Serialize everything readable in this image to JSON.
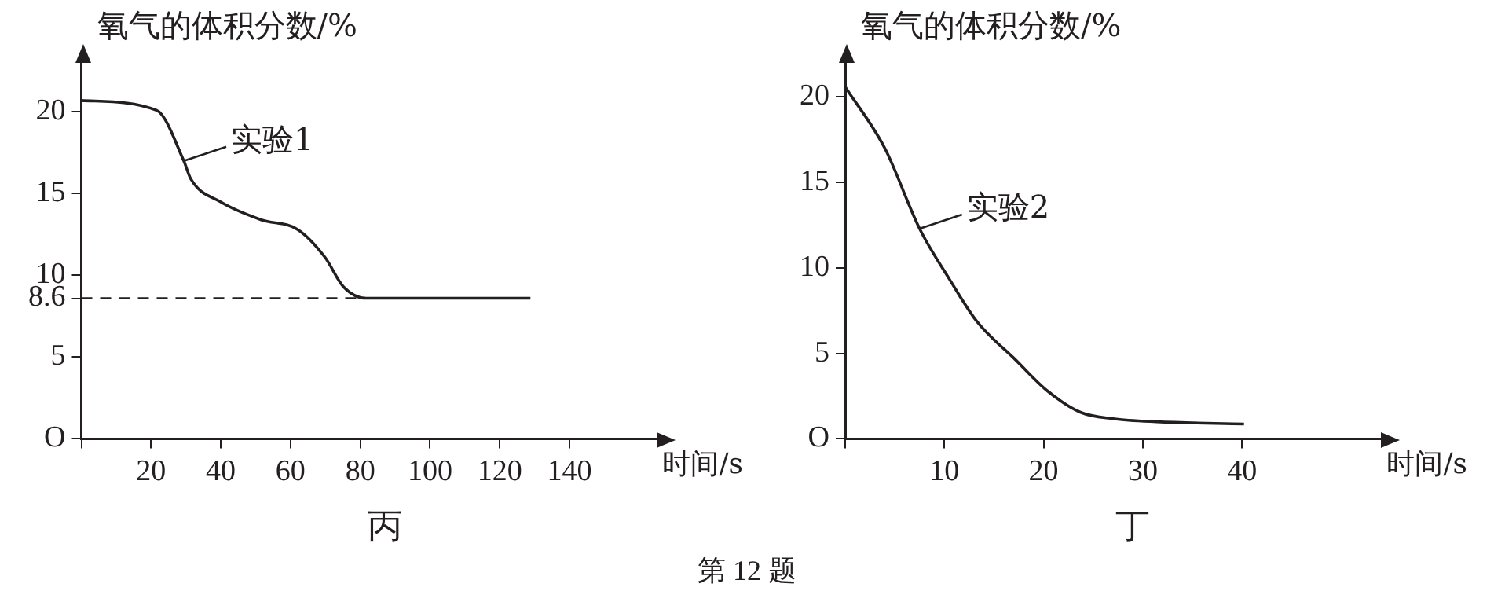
{
  "chart_data": [
    {
      "type": "line",
      "xlabel": "时间/s",
      "ylabel": "氧气的体积分数/%",
      "xlim": [
        0,
        165
      ],
      "ylim": [
        0,
        23
      ],
      "xticks": [
        {
          "value": 0,
          "label": null
        },
        20,
        40,
        60,
        80,
        100,
        120,
        140
      ],
      "yticks": [
        {
          "value": 0,
          "label": "O"
        },
        5,
        8.6,
        10,
        15,
        20
      ],
      "series": [
        {
          "color": "#231f20",
          "x": [
            0,
            21.6,
            29.4,
            31.4,
            39.9,
            51.6,
            62.1,
            69.9,
            75.2,
            81.7,
            128.8
          ],
          "values": [
            20.7,
            20.1,
            17.0,
            15.9,
            14.5,
            13.4,
            12.8,
            11.1,
            9.3,
            8.6,
            8.6
          ]
        }
      ],
      "ref_lines": [
        {
          "axis": "y",
          "value": 8.6,
          "line_style": "dashed",
          "color": "#231f20"
        }
      ],
      "annotations": [
        {
          "text": "实验1",
          "x": 29.4,
          "y": 17.0
        },
        "丙"
      ],
      "grid": false,
      "legend": false,
      "marker": "none",
      "line_style": "solid"
    },
    {
      "type": "line",
      "xlabel": "时间/s",
      "ylabel": "氧气的体积分数/%",
      "xlim": [
        0,
        54
      ],
      "ylim": [
        0,
        22
      ],
      "xticks": [
        {
          "value": 0,
          "label": null
        },
        10,
        20,
        30,
        40
      ],
      "yticks": [
        {
          "value": 0,
          "label": "O"
        },
        5,
        10,
        15,
        20
      ],
      "series": [
        {
          "color": "#231f20",
          "x": [
            0,
            4.0,
            7.5,
            10.5,
            13.3,
            17.1,
            20.4,
            23.7,
            27,
            31.4,
            40.2
          ],
          "values": [
            20.6,
            17.0,
            12.3,
            9.35,
            6.85,
            4.67,
            2.8,
            1.56,
            1.18,
            1.0,
            0.87
          ]
        }
      ],
      "annotations": [
        {
          "text": "实验2",
          "x": 7.5,
          "y": 12.3
        },
        "丁",
        "第 12 题"
      ],
      "grid": false,
      "legend": false,
      "marker": "none",
      "line_style": "solid"
    }
  ]
}
